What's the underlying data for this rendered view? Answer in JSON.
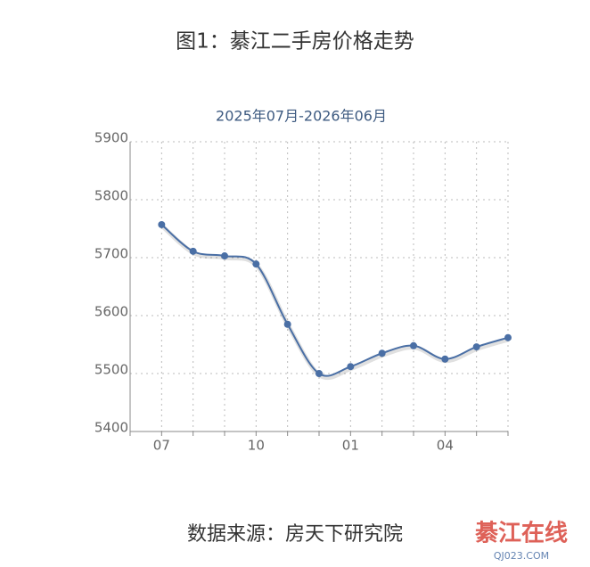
{
  "chart_data": {
    "type": "line",
    "title": "图1：綦江二手房价格走势",
    "subtitle": "2025年07月-2026年06月",
    "categories": [
      "07",
      null,
      null,
      "10",
      null,
      null,
      "01",
      null,
      null,
      "04",
      null,
      null
    ],
    "series": [
      {
        "name": "綦江二手房价格",
        "color": "#4a6fa5",
        "values": [
          5757,
          5711,
          5703,
          5689,
          5585,
          5500,
          5512,
          5535,
          5548,
          5525,
          5546,
          5562
        ]
      }
    ],
    "ylim": [
      5400,
      5900
    ],
    "yticks": [
      5400,
      5500,
      5600,
      5700,
      5800,
      5900
    ],
    "grid": true,
    "source": "数据来源：房天下研究院",
    "watermark": {
      "name": "綦江在线",
      "url": "QJ023.COM"
    }
  }
}
